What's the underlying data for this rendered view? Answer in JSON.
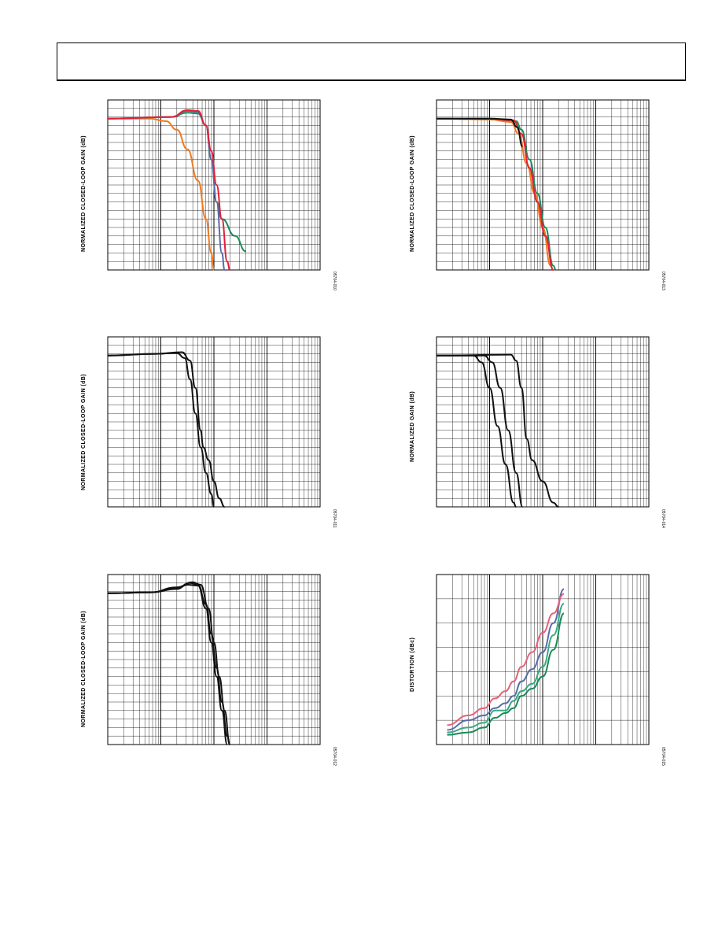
{
  "charts": [
    {
      "id": "c1",
      "ylabel": "NORMALIZED CLOSED-LOOP GAIN (dB)",
      "code": "05704-010"
    },
    {
      "id": "c2",
      "ylabel": "NORMALIZED CLOSED-LOOP GAIN (dB)",
      "code": "05704-013"
    },
    {
      "id": "c3",
      "ylabel": "NORMALIZED CLOSED-LOOP GAIN (dB)",
      "code": "05704-011"
    },
    {
      "id": "c4",
      "ylabel": "NORMALIZED GAIN (dB)",
      "code": "05704-014"
    },
    {
      "id": "c5",
      "ylabel": "NORMALIZED CLOSED-LOOP GAIN (dB)",
      "code": "05704-012"
    },
    {
      "id": "c6",
      "ylabel": "DISTORTION (dBc)",
      "code": "05704-015"
    }
  ],
  "colors": {
    "orange": "#f07a20",
    "green": "#1a8a58",
    "red": "#e0203a",
    "blue": "#5a6aa8",
    "black": "#111111",
    "pink": "#e8607a",
    "teal": "#3aa882",
    "grid": "#000000"
  },
  "chart_data": [
    {
      "type": "line",
      "xscale": "log",
      "x_decades": 4,
      "y_divisions": 20,
      "series": [
        {
          "color": "orange",
          "points": [
            [
              0,
              2.2
            ],
            [
              0.8,
              2.2
            ],
            [
              1.1,
              2.5
            ],
            [
              1.3,
              3.5
            ],
            [
              1.5,
              5.8
            ],
            [
              1.7,
              9.5
            ],
            [
              1.85,
              14
            ],
            [
              1.95,
              18
            ],
            [
              2.0,
              20
            ]
          ]
        },
        {
          "color": "green",
          "points": [
            [
              0,
              2.2
            ],
            [
              1.2,
              2.0
            ],
            [
              1.5,
              1.5
            ],
            [
              1.7,
              1.6
            ],
            [
              1.85,
              3
            ],
            [
              1.95,
              7
            ],
            [
              2.05,
              12
            ],
            [
              2.15,
              14
            ],
            [
              2.4,
              16
            ],
            [
              2.6,
              17.8
            ]
          ]
        },
        {
          "color": "blue",
          "points": [
            [
              0,
              2.2
            ],
            [
              1.2,
              2.0
            ],
            [
              1.5,
              1.3
            ],
            [
              1.7,
              1.4
            ],
            [
              1.85,
              3
            ],
            [
              1.95,
              7
            ],
            [
              2.05,
              12
            ],
            [
              2.15,
              18
            ],
            [
              2.2,
              20
            ]
          ]
        },
        {
          "color": "red",
          "points": [
            [
              0,
              2.2
            ],
            [
              1.2,
              2.0
            ],
            [
              1.5,
              1.2
            ],
            [
              1.7,
              1.3
            ],
            [
              1.85,
              3
            ],
            [
              1.95,
              6
            ],
            [
              2.05,
              10
            ],
            [
              2.15,
              14
            ],
            [
              2.25,
              19
            ],
            [
              2.3,
              20
            ]
          ]
        }
      ]
    },
    {
      "type": "line",
      "xscale": "log",
      "x_decades": 4,
      "y_divisions": 20,
      "series": [
        {
          "color": "green",
          "points": [
            [
              0,
              2.2
            ],
            [
              1.0,
              2.3
            ],
            [
              1.5,
              2.5
            ],
            [
              1.6,
              3.5
            ],
            [
              1.75,
              7
            ],
            [
              1.9,
              11
            ],
            [
              2.05,
              15
            ],
            [
              2.2,
              19.5
            ],
            [
              2.25,
              20
            ]
          ]
        },
        {
          "color": "orange",
          "points": [
            [
              0,
              2.2
            ],
            [
              1.0,
              2.3
            ],
            [
              1.4,
              2.6
            ],
            [
              1.55,
              4
            ],
            [
              1.7,
              7.5
            ],
            [
              1.85,
              11
            ],
            [
              2.0,
              15
            ],
            [
              2.15,
              19.5
            ],
            [
              2.2,
              20
            ]
          ]
        },
        {
          "color": "red",
          "points": [
            [
              0,
              2.2
            ],
            [
              1.0,
              2.2
            ],
            [
              1.45,
              2.4
            ],
            [
              1.6,
              4
            ],
            [
              1.75,
              8
            ],
            [
              1.9,
              12
            ],
            [
              2.05,
              16
            ],
            [
              2.2,
              20
            ]
          ]
        },
        {
          "color": "black",
          "points": [
            [
              0,
              2.2
            ],
            [
              1.0,
              2.2
            ],
            [
              1.4,
              2.3
            ],
            [
              1.52,
              3.2
            ],
            [
              1.62,
              5.5
            ]
          ]
        }
      ]
    },
    {
      "type": "line",
      "xscale": "log",
      "x_decades": 4,
      "y_divisions": 20,
      "series": [
        {
          "color": "black",
          "points": [
            [
              0,
              2.2
            ],
            [
              0.9,
              2.0
            ],
            [
              1.4,
              1.8
            ],
            [
              1.55,
              2.8
            ],
            [
              1.65,
              6
            ],
            [
              1.75,
              11
            ],
            [
              1.8,
              13
            ],
            [
              1.9,
              14.5
            ],
            [
              2.0,
              17
            ],
            [
              2.1,
              19
            ],
            [
              2.2,
              20
            ]
          ]
        },
        {
          "color": "black",
          "points": [
            [
              0,
              2.2
            ],
            [
              0.9,
              2.0
            ],
            [
              1.3,
              1.9
            ],
            [
              1.45,
              2.5
            ],
            [
              1.55,
              5
            ],
            [
              1.65,
              9
            ],
            [
              1.75,
              13
            ],
            [
              1.85,
              16
            ],
            [
              1.95,
              18.5
            ],
            [
              2.0,
              20
            ]
          ]
        }
      ]
    },
    {
      "type": "line",
      "xscale": "log",
      "x_decades": 4,
      "y_divisions": 20,
      "series": [
        {
          "color": "black",
          "points": [
            [
              0,
              2.2
            ],
            [
              0.7,
              2.2
            ],
            [
              0.85,
              3
            ],
            [
              1.0,
              6
            ],
            [
              1.15,
              10.5
            ],
            [
              1.3,
              15
            ],
            [
              1.45,
              19.5
            ],
            [
              1.5,
              20
            ]
          ]
        },
        {
          "color": "black",
          "points": [
            [
              0,
              2.2
            ],
            [
              0.9,
              2.2
            ],
            [
              1.05,
              3
            ],
            [
              1.2,
              6
            ],
            [
              1.35,
              11
            ],
            [
              1.5,
              16
            ],
            [
              1.62,
              20
            ]
          ]
        },
        {
          "color": "black",
          "points": [
            [
              0,
              2.2
            ],
            [
              1.4,
              2.1
            ],
            [
              1.5,
              2.8
            ],
            [
              1.6,
              6
            ],
            [
              1.7,
              12
            ],
            [
              1.8,
              14.5
            ],
            [
              2.0,
              17
            ],
            [
              2.2,
              19.5
            ],
            [
              2.3,
              20
            ]
          ]
        }
      ]
    },
    {
      "type": "line",
      "xscale": "log",
      "x_decades": 4,
      "y_divisions": 20,
      "series": [
        {
          "color": "black",
          "points": [
            [
              0,
              2.2
            ],
            [
              0.8,
              2.1
            ],
            [
              1.3,
              1.6
            ],
            [
              1.55,
              1.0
            ],
            [
              1.7,
              1.2
            ],
            [
              1.85,
              3.5
            ],
            [
              1.95,
              7
            ],
            [
              2.05,
              11
            ],
            [
              2.15,
              15
            ],
            [
              2.25,
              19
            ],
            [
              2.3,
              20
            ]
          ]
        },
        {
          "color": "black",
          "points": [
            [
              0,
              2.2
            ],
            [
              0.8,
              2.1
            ],
            [
              1.3,
              1.5
            ],
            [
              1.6,
              0.9
            ],
            [
              1.75,
              1.2
            ],
            [
              1.9,
              4
            ],
            [
              2.0,
              8
            ],
            [
              2.1,
              12
            ],
            [
              2.2,
              16
            ],
            [
              2.3,
              20
            ]
          ]
        },
        {
          "color": "black",
          "points": [
            [
              0,
              2.2
            ],
            [
              0.8,
              2.1
            ],
            [
              1.3,
              1.7
            ],
            [
              1.5,
              1.2
            ],
            [
              1.7,
              1.3
            ],
            [
              1.85,
              4
            ],
            [
              1.95,
              8
            ],
            [
              2.05,
              12
            ],
            [
              2.15,
              16
            ],
            [
              2.25,
              20
            ]
          ]
        }
      ]
    },
    {
      "type": "line",
      "xscale": "log",
      "x_decades": 4,
      "y_divisions": 7,
      "series": [
        {
          "color": "teal",
          "points": [
            [
              0.2,
              6.5
            ],
            [
              0.6,
              6.3
            ],
            [
              0.9,
              6.1
            ],
            [
              1.1,
              5.6
            ],
            [
              1.3,
              5.6
            ],
            [
              1.45,
              5.2
            ],
            [
              1.6,
              4.8
            ],
            [
              1.8,
              4.5
            ],
            [
              2.0,
              3.8
            ],
            [
              2.2,
              2.5
            ],
            [
              2.4,
              1.2
            ]
          ]
        },
        {
          "color": "blue",
          "points": [
            [
              0.2,
              6.4
            ],
            [
              0.6,
              6.0
            ],
            [
              0.9,
              5.8
            ],
            [
              1.1,
              5.5
            ],
            [
              1.3,
              5.3
            ],
            [
              1.45,
              5.0
            ],
            [
              1.6,
              4.4
            ],
            [
              1.8,
              3.9
            ],
            [
              2.0,
              3.2
            ],
            [
              2.2,
              2.0
            ],
            [
              2.4,
              0.6
            ]
          ]
        },
        {
          "color": "pink",
          "points": [
            [
              0.2,
              6.2
            ],
            [
              0.6,
              5.8
            ],
            [
              0.9,
              5.5
            ],
            [
              1.1,
              5.1
            ],
            [
              1.3,
              4.8
            ],
            [
              1.45,
              4.4
            ],
            [
              1.6,
              3.8
            ],
            [
              1.8,
              3.2
            ],
            [
              2.0,
              2.4
            ],
            [
              2.2,
              1.6
            ],
            [
              2.4,
              0.8
            ]
          ]
        },
        {
          "color": "green",
          "points": [
            [
              0.2,
              6.6
            ],
            [
              0.6,
              6.5
            ],
            [
              0.9,
              6.3
            ],
            [
              1.1,
              5.9
            ],
            [
              1.3,
              5.7
            ],
            [
              1.45,
              5.5
            ],
            [
              1.6,
              5.0
            ],
            [
              1.8,
              4.7
            ],
            [
              2.0,
              4.2
            ],
            [
              2.2,
              3.1
            ],
            [
              2.4,
              1.6
            ]
          ]
        }
      ]
    }
  ]
}
